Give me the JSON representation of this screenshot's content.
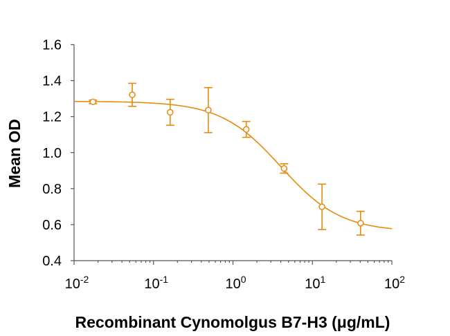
{
  "chart_data": {
    "type": "scatter",
    "title": "",
    "xlabel": "Recombinant Cynomolgus B7-H3 (μg/mL)",
    "ylabel": "Mean OD",
    "xscale": "log",
    "xlim": [
      0.01,
      100
    ],
    "ylim": [
      0.4,
      1.6
    ],
    "x_ticks": [
      {
        "base": "10",
        "exp": "-2"
      },
      {
        "base": "10",
        "exp": "-1"
      },
      {
        "base": "10",
        "exp": "0"
      },
      {
        "base": "10",
        "exp": "1"
      },
      {
        "base": "10",
        "exp": "2"
      }
    ],
    "y_ticks": [
      "0.4",
      "0.6",
      "0.8",
      "1.0",
      "1.2",
      "1.4",
      "1.6"
    ],
    "grid": false,
    "color": "#E8890C",
    "series": [
      {
        "name": "Mean OD",
        "x": [
          0.0173,
          0.054,
          0.162,
          0.489,
          1.47,
          4.4,
          13.2,
          40.4
        ],
        "y": [
          1.282,
          1.321,
          1.224,
          1.236,
          1.129,
          0.912,
          0.699,
          0.608
        ],
        "error": [
          0.01,
          0.064,
          0.072,
          0.125,
          0.044,
          0.026,
          0.126,
          0.066
        ]
      }
    ],
    "fit": {
      "model": "4PL",
      "top": 1.285,
      "bottom": 0.56,
      "ec50": 4.0,
      "hill": 1.15
    }
  }
}
